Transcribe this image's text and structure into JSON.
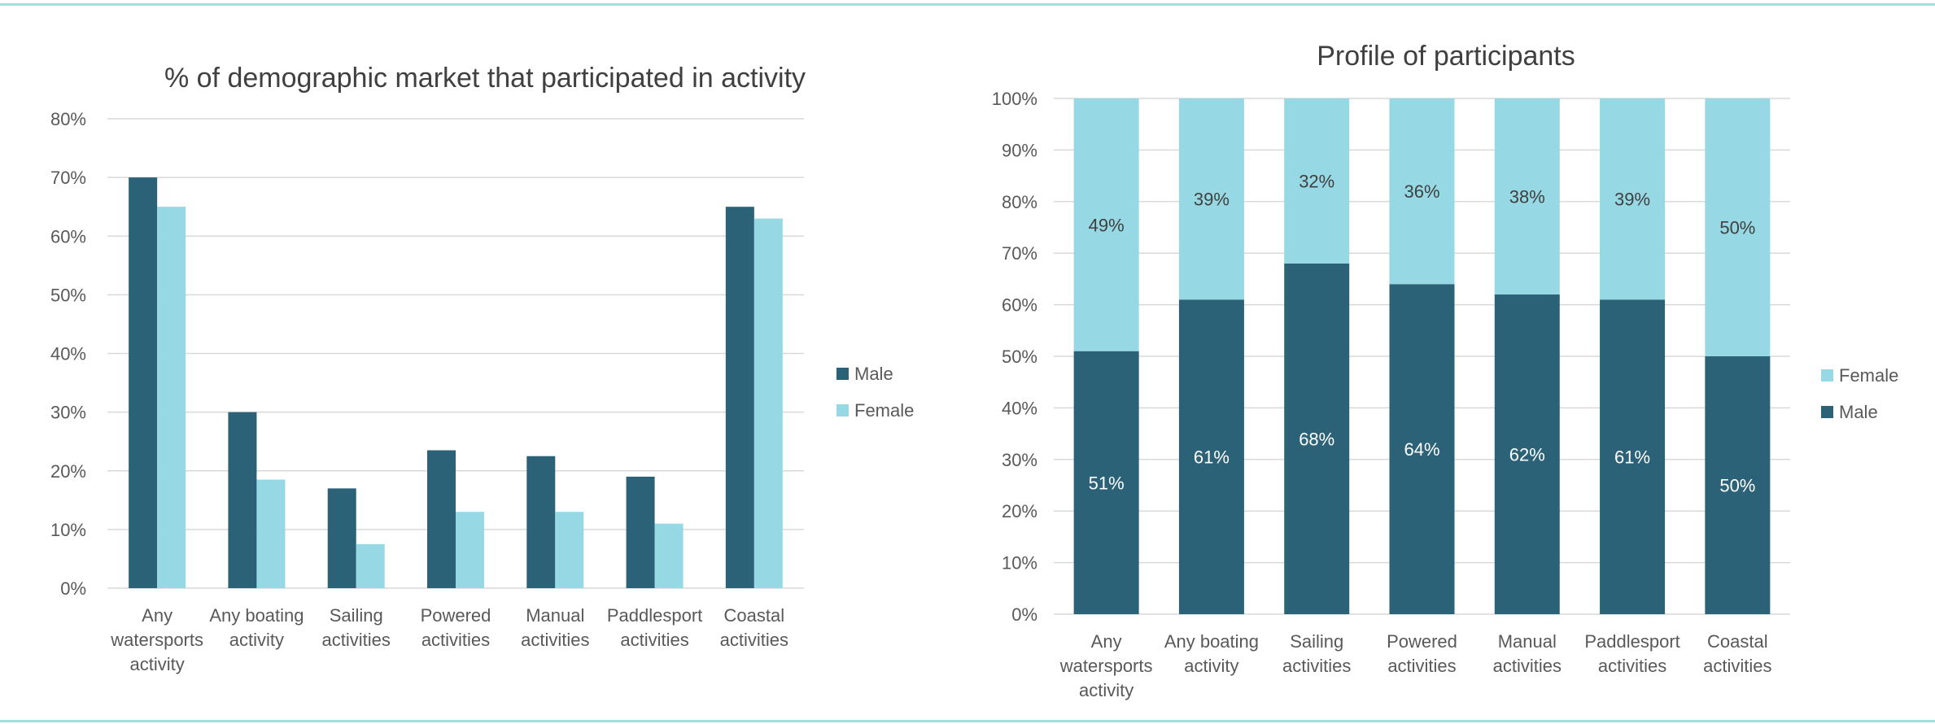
{
  "chart_data": [
    {
      "type": "bar",
      "title": "% of demographic market that participated in activity",
      "categories": [
        [
          "Any",
          "watersports",
          "activity"
        ],
        [
          "Any boating",
          "activity"
        ],
        [
          "Sailing",
          "activities"
        ],
        [
          "Powered",
          "activities"
        ],
        [
          "Manual",
          "activities"
        ],
        [
          "Paddlesport",
          "activities"
        ],
        [
          "Coastal",
          "activities"
        ]
      ],
      "series": [
        {
          "name": "Male",
          "color": "#2b6277",
          "values": [
            70,
            30,
            17,
            23.5,
            22.5,
            19,
            65
          ]
        },
        {
          "name": "Female",
          "color": "#96d8e3",
          "values": [
            65,
            18.5,
            7.5,
            13,
            13,
            11,
            63
          ]
        }
      ],
      "ylim": [
        0,
        80
      ],
      "yticks": [
        "0%",
        "10%",
        "20%",
        "30%",
        "40%",
        "50%",
        "60%",
        "70%",
        "80%"
      ],
      "grid": true,
      "legend": "right"
    },
    {
      "type": "bar",
      "stacked": true,
      "title": "Profile of participants",
      "categories": [
        [
          "Any",
          "watersports",
          "activity"
        ],
        [
          "Any boating",
          "activity"
        ],
        [
          "Sailing",
          "activities"
        ],
        [
          "Powered",
          "activities"
        ],
        [
          "Manual",
          "activities"
        ],
        [
          "Paddlesport",
          "activities"
        ],
        [
          "Coastal",
          "activities"
        ]
      ],
      "series": [
        {
          "name": "Male",
          "color": "#2b6277",
          "values": [
            51,
            61,
            68,
            64,
            62,
            61,
            50
          ],
          "labels": [
            "51%",
            "61%",
            "68%",
            "64%",
            "62%",
            "61%",
            "50%"
          ]
        },
        {
          "name": "Female",
          "color": "#96d8e3",
          "values": [
            49,
            39,
            32,
            36,
            38,
            39,
            50
          ],
          "labels": [
            "49%",
            "39%",
            "32%",
            "36%",
            "38%",
            "39%",
            "50%"
          ]
        }
      ],
      "ylim": [
        0,
        100
      ],
      "yticks": [
        "0%",
        "10%",
        "20%",
        "30%",
        "40%",
        "50%",
        "60%",
        "70%",
        "80%",
        "90%",
        "100%"
      ],
      "grid": true,
      "legend": "right",
      "legend_order": [
        "Female",
        "Male"
      ]
    }
  ]
}
